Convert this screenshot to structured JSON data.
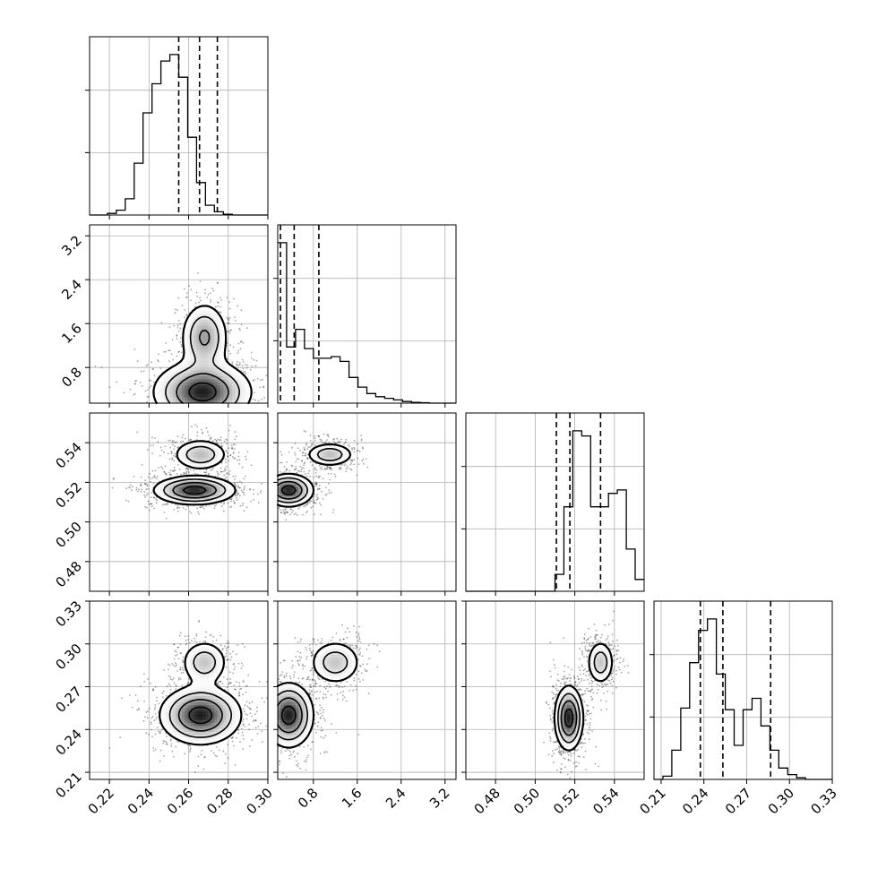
{
  "chart_data": {
    "type": "corner",
    "n_params": 4,
    "params": [
      {
        "range": [
          0.21,
          0.3
        ],
        "ticks": [
          "0.22",
          "0.24",
          "0.26",
          "0.28",
          "0.30"
        ],
        "tick_values": [
          0.22,
          0.24,
          0.26,
          0.28,
          0.3
        ],
        "quantiles": [
          0.255,
          0.2655,
          0.2745
        ]
      },
      {
        "range": [
          0.15,
          3.4
        ],
        "ticks": [
          "0.8",
          "1.6",
          "2.4",
          "3.2"
        ],
        "tick_values": [
          0.8,
          1.6,
          2.4,
          3.2
        ],
        "quantiles": [
          0.2,
          0.45,
          0.9
        ]
      },
      {
        "range": [
          0.465,
          0.555
        ],
        "ticks": [
          "0.48",
          "0.50",
          "0.52",
          "0.54"
        ],
        "tick_values": [
          0.48,
          0.5,
          0.52,
          0.54
        ],
        "quantiles": [
          0.5107,
          0.5175,
          0.533
        ]
      },
      {
        "range": [
          0.205,
          0.33
        ],
        "ticks": [
          "0.21",
          "0.24",
          "0.27",
          "0.30",
          "0.33"
        ],
        "tick_values": [
          0.21,
          0.24,
          0.27,
          0.3,
          0.33
        ],
        "quantiles": [
          0.2375,
          0.2533,
          0.2868
        ]
      }
    ],
    "histograms": [
      {
        "edges_start": 0.21,
        "bin_width": 0.0045,
        "counts": [
          0,
          0,
          0.01,
          0.03,
          0.1,
          0.32,
          0.63,
          0.81,
          0.95,
          0.99,
          0.85,
          0.48,
          0.2,
          0.06,
          0.02,
          0.005,
          0,
          0,
          0,
          0
        ]
      },
      {
        "edges_start": 0.15,
        "bin_width": 0.1625,
        "counts": [
          1.0,
          0.35,
          0.46,
          0.34,
          0.28,
          0.28,
          0.29,
          0.26,
          0.16,
          0.1,
          0.06,
          0.04,
          0.03,
          0.02,
          0.01,
          0.005,
          0.003,
          0,
          0,
          0
        ]
      },
      {
        "edges_start": 0.465,
        "bin_width": 0.0045,
        "counts": [
          0,
          0,
          0,
          0,
          0,
          0,
          0,
          0,
          0,
          0,
          0.1,
          0.5,
          0.95,
          0.92,
          0.5,
          0.5,
          0.58,
          0.6,
          0.25,
          0.07,
          0.02
        ]
      },
      {
        "edges_start": 0.205,
        "bin_width": 0.00625,
        "counts": [
          0,
          0.02,
          0.18,
          0.44,
          0.72,
          0.92,
          0.99,
          0.65,
          0.43,
          0.21,
          0.43,
          0.5,
          0.33,
          0.18,
          0.07,
          0.03,
          0.01,
          0,
          0,
          0
        ]
      }
    ],
    "pairs": [
      {
        "row": 1,
        "col": 0,
        "blobs": [
          {
            "x": 0.268,
            "y": 1.35,
            "sx": 0.006,
            "sy": 0.32,
            "w": 0.6
          },
          {
            "x": 0.267,
            "y": 0.35,
            "sx": 0.012,
            "sy": 0.28,
            "w": 1.0
          }
        ]
      },
      {
        "row": 2,
        "col": 0,
        "blobs": [
          {
            "x": 0.266,
            "y": 0.534,
            "sx": 0.007,
            "sy": 0.004,
            "w": 0.5
          },
          {
            "x": 0.263,
            "y": 0.516,
            "sx": 0.01,
            "sy": 0.0035,
            "w": 1.0
          }
        ]
      },
      {
        "row": 2,
        "col": 1,
        "blobs": [
          {
            "x": 1.1,
            "y": 0.534,
            "sx": 0.22,
            "sy": 0.003,
            "w": 0.5
          },
          {
            "x": 0.35,
            "y": 0.516,
            "sx": 0.22,
            "sy": 0.004,
            "w": 1.0
          }
        ]
      },
      {
        "row": 3,
        "col": 0,
        "blobs": [
          {
            "x": 0.268,
            "y": 0.287,
            "sx": 0.006,
            "sy": 0.008,
            "w": 0.45
          },
          {
            "x": 0.266,
            "y": 0.25,
            "sx": 0.01,
            "sy": 0.01,
            "w": 1.0
          }
        ]
      },
      {
        "row": 3,
        "col": 1,
        "blobs": [
          {
            "x": 1.2,
            "y": 0.287,
            "sx": 0.24,
            "sy": 0.008,
            "w": 0.45
          },
          {
            "x": 0.35,
            "y": 0.25,
            "sx": 0.22,
            "sy": 0.011,
            "w": 1.0
          }
        ]
      },
      {
        "row": 3,
        "col": 2,
        "blobs": [
          {
            "x": 0.533,
            "y": 0.287,
            "sx": 0.0035,
            "sy": 0.008,
            "w": 0.45
          },
          {
            "x": 0.517,
            "y": 0.248,
            "sx": 0.0035,
            "sy": 0.011,
            "w": 1.0
          }
        ]
      }
    ],
    "contour_levels": [
      0.85,
      0.55,
      0.3,
      0.12
    ],
    "grid": true,
    "title": "",
    "xlabel": "",
    "ylabel": ""
  }
}
